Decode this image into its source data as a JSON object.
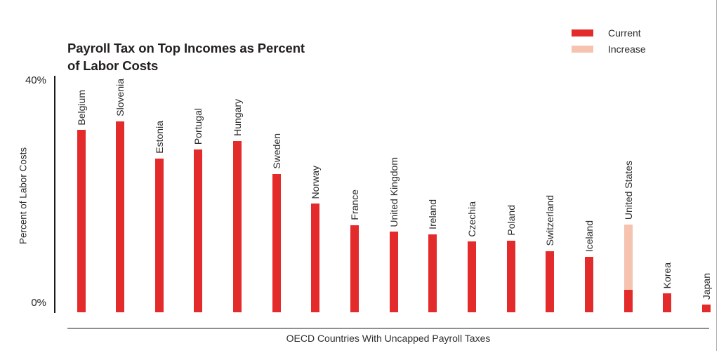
{
  "title_lines": [
    "Payroll Tax on Top Incomes as Percent",
    "of Labor Costs"
  ],
  "legend": {
    "items": [
      {
        "label": "Current",
        "color": "#e32b2b"
      },
      {
        "label": "Increase",
        "color": "#f5c3b0"
      }
    ]
  },
  "y_axis": {
    "top_tick": "40%",
    "bottom_tick": "0%",
    "label": "Percent of Labor Costs"
  },
  "x_axis": {
    "label": "OECD Countries With Uncapped Payroll Taxes"
  },
  "chart_data": {
    "type": "bar",
    "stacked": true,
    "title": "Payroll Tax on Top Incomes as Percent of Labor Costs",
    "xlabel": "OECD Countries With Uncapped Payroll Taxes",
    "ylabel": "Percent of Labor Costs",
    "ylim": [
      0,
      40
    ],
    "yticks": [
      "0%",
      "40%"
    ],
    "grid": false,
    "legend_position": "top-right",
    "categories": [
      "Belgium",
      "Slovenia",
      "Estonia",
      "Portugal",
      "Hungary",
      "Sweden",
      "Norway",
      "France",
      "United Kingdom",
      "Ireland",
      "Czechia",
      "Poland",
      "Switzerland",
      "Iceland",
      "United States",
      "Korea",
      "Japan"
    ],
    "series": [
      {
        "name": "Current",
        "color": "#e32b2b",
        "values": [
          31.2,
          32.7,
          26.3,
          27.9,
          29.3,
          23.7,
          18.6,
          14.9,
          13.8,
          13.3,
          12.1,
          12.3,
          10.5,
          9.5,
          3.9,
          3.2,
          1.3
        ]
      },
      {
        "name": "Increase",
        "color": "#f5c3b0",
        "values": [
          0,
          0,
          0,
          0,
          0,
          0,
          0,
          0,
          0,
          0,
          0,
          0,
          0,
          0,
          11.1,
          0,
          0
        ]
      }
    ]
  }
}
